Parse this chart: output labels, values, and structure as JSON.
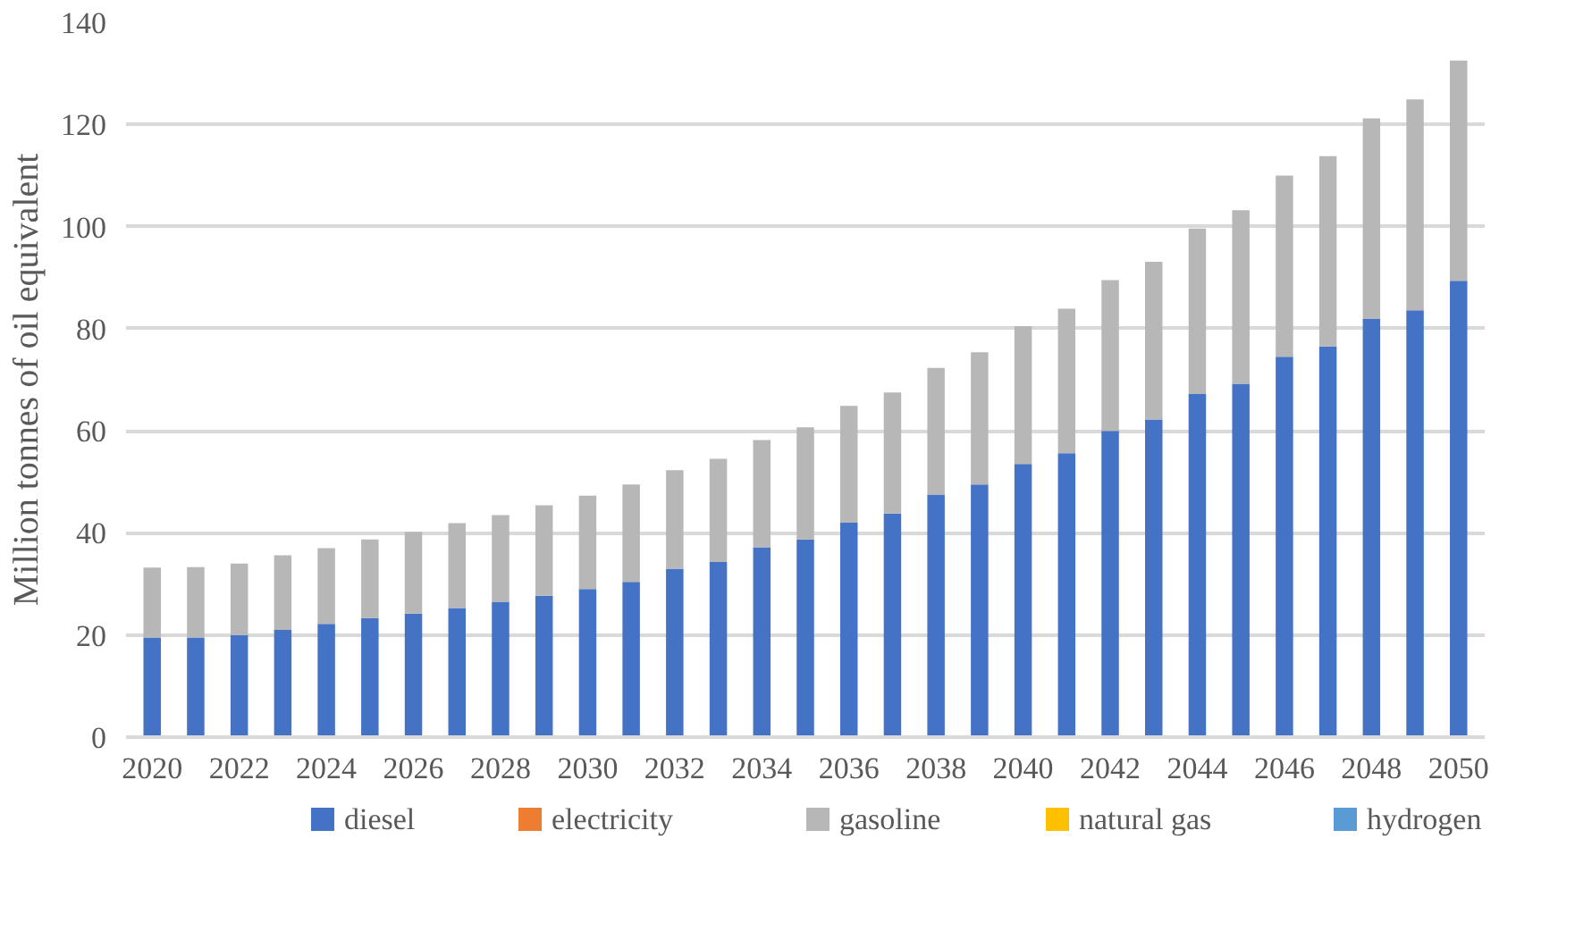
{
  "chart_data": {
    "type": "bar",
    "stacked": true,
    "ylabel": "Million tonnes of oil equivalent",
    "categories": [
      "2020",
      null,
      "2022",
      null,
      "2024",
      null,
      "2026",
      null,
      "2028",
      null,
      "2030",
      null,
      "2032",
      null,
      "2034",
      null,
      "2036",
      null,
      "2038",
      null,
      "2040",
      null,
      "2042",
      null,
      "2044",
      null,
      "2046",
      null,
      "2048",
      null,
      "2050"
    ],
    "series": [
      {
        "name": "diesel",
        "color": "#4472c4",
        "values": [
          19.5,
          19.5,
          20,
          21,
          22.2,
          23.3,
          24.2,
          25.3,
          26.5,
          27.7,
          29,
          30.4,
          33,
          34.3,
          37.2,
          38.7,
          42,
          43.8,
          47.5,
          49.5,
          53.5,
          55.6,
          60,
          62.2,
          67.2,
          69.2,
          74.5,
          76.5,
          82,
          83.6,
          89.4
        ]
      },
      {
        "name": "electricity",
        "color": "#ed7d31",
        "values": [
          0,
          0,
          0,
          0,
          0,
          0,
          0,
          0,
          0,
          0,
          0,
          0,
          0,
          0,
          0,
          0,
          0,
          0,
          0,
          0,
          0,
          0,
          0,
          0,
          0,
          0,
          0,
          0,
          0,
          0,
          0
        ]
      },
      {
        "name": "gasoline",
        "color": "#b7b7b7",
        "values": [
          13.7,
          13.8,
          14,
          14.6,
          14.8,
          15.4,
          16,
          16.6,
          17,
          17.7,
          18.3,
          19.1,
          19.3,
          20.2,
          21,
          22,
          22.9,
          23.7,
          24.8,
          25.9,
          27,
          28.3,
          29.5,
          30.9,
          32.4,
          34,
          35.5,
          37.3,
          39.2,
          41.3,
          43.1
        ]
      },
      {
        "name": "natural gas",
        "color": "#ffc000",
        "values": [
          0,
          0,
          0,
          0,
          0,
          0,
          0,
          0,
          0,
          0,
          0,
          0,
          0,
          0,
          0,
          0,
          0,
          0,
          0,
          0,
          0,
          0,
          0,
          0,
          0,
          0,
          0,
          0,
          0,
          0,
          0
        ]
      },
      {
        "name": "hydrogen",
        "color": "#5b9bd5",
        "values": [
          0,
          0,
          0,
          0,
          0,
          0,
          0,
          0,
          0,
          0,
          0,
          0,
          0,
          0,
          0,
          0,
          0,
          0,
          0,
          0,
          0,
          0,
          0,
          0,
          0,
          0,
          0,
          0,
          0,
          0,
          0
        ]
      }
    ],
    "ylim": [
      0,
      140
    ],
    "yticks": [
      0,
      20,
      40,
      60,
      80,
      100,
      120,
      140
    ],
    "grid": "y",
    "legend": "bottom"
  }
}
